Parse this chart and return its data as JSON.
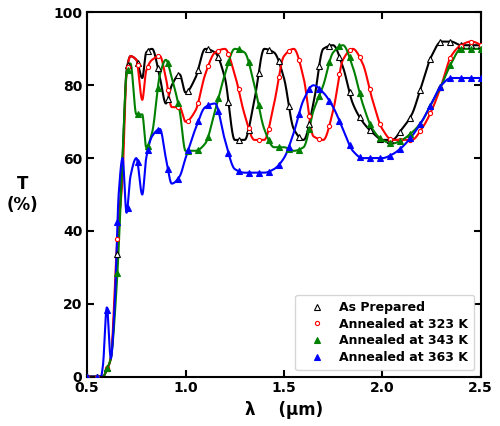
{
  "title": "",
  "xlabel": "λ    (μm)",
  "ylabel": "T\n(%)",
  "xlim": [
    0.5,
    2.5
  ],
  "ylim": [
    0,
    100
  ],
  "xticks": [
    0.5,
    1.0,
    1.5,
    2.0,
    2.5
  ],
  "yticks": [
    0,
    20,
    40,
    60,
    80,
    100
  ],
  "legend_labels": [
    "As Prepared",
    "Annealed at 323 K",
    "Annealed at 343 K",
    "Annealed at 363 K"
  ],
  "colors": [
    "black",
    "red",
    "green",
    "blue"
  ],
  "linewidth": 1.5,
  "figsize": [
    5.0,
    4.26
  ],
  "dpi": 100,
  "black_x": [
    0.5,
    0.55,
    0.58,
    0.6,
    0.62,
    0.65,
    0.68,
    0.7,
    0.72,
    0.75,
    0.78,
    0.8,
    0.83,
    0.87,
    0.9,
    0.93,
    0.97,
    1.0,
    1.05,
    1.1,
    1.15,
    1.2,
    1.25,
    1.3,
    1.35,
    1.4,
    1.45,
    1.5,
    1.55,
    1.6,
    1.65,
    1.7,
    1.75,
    1.8,
    1.85,
    1.9,
    1.95,
    2.0,
    2.05,
    2.1,
    2.15,
    2.2,
    2.25,
    2.3,
    2.35,
    2.4,
    2.45,
    2.5
  ],
  "black_y": [
    0,
    0,
    0,
    2,
    5,
    30,
    60,
    84,
    88,
    87,
    82,
    89,
    90,
    82,
    75,
    80,
    83,
    78,
    82,
    90,
    89,
    82,
    65,
    65,
    76,
    90,
    89,
    82,
    68,
    65,
    75,
    90,
    91,
    85,
    75,
    70,
    67,
    65,
    65,
    68,
    72,
    80,
    88,
    92,
    92,
    91,
    91,
    91
  ],
  "red_x": [
    0.5,
    0.55,
    0.58,
    0.6,
    0.62,
    0.65,
    0.68,
    0.7,
    0.72,
    0.75,
    0.78,
    0.8,
    0.83,
    0.87,
    0.9,
    0.93,
    0.97,
    1.0,
    1.05,
    1.1,
    1.15,
    1.2,
    1.25,
    1.3,
    1.35,
    1.4,
    1.45,
    1.5,
    1.55,
    1.6,
    1.65,
    1.7,
    1.75,
    1.8,
    1.85,
    1.9,
    1.95,
    2.0,
    2.05,
    2.1,
    2.15,
    2.2,
    2.25,
    2.3,
    2.35,
    2.4,
    2.45,
    2.5
  ],
  "red_y": [
    0,
    0,
    0,
    2,
    5,
    35,
    55,
    83,
    88,
    87,
    76,
    84,
    87,
    88,
    82,
    74,
    74,
    70,
    73,
    83,
    89,
    90,
    83,
    72,
    65,
    65,
    75,
    88,
    90,
    82,
    66,
    65,
    73,
    87,
    90,
    86,
    76,
    68,
    65,
    65,
    65,
    68,
    73,
    80,
    88,
    91,
    92,
    91
  ],
  "green_x": [
    0.5,
    0.55,
    0.58,
    0.6,
    0.62,
    0.65,
    0.68,
    0.7,
    0.72,
    0.75,
    0.78,
    0.8,
    0.83,
    0.87,
    0.9,
    0.93,
    0.97,
    1.0,
    1.05,
    1.1,
    1.15,
    1.2,
    1.25,
    1.3,
    1.35,
    1.4,
    1.45,
    1.5,
    1.55,
    1.6,
    1.65,
    1.7,
    1.75,
    1.8,
    1.85,
    1.9,
    1.95,
    2.0,
    2.05,
    2.1,
    2.15,
    2.2,
    2.25,
    2.3,
    2.35,
    2.4,
    2.45,
    2.5
  ],
  "green_y": [
    0,
    0,
    0,
    2,
    5,
    25,
    60,
    83,
    86,
    72,
    72,
    63,
    67,
    83,
    87,
    82,
    73,
    62,
    62,
    64,
    73,
    83,
    90,
    89,
    80,
    68,
    63,
    63,
    62,
    63,
    73,
    80,
    89,
    91,
    85,
    75,
    68,
    65,
    64,
    65,
    67,
    70,
    75,
    80,
    86,
    90,
    90,
    90
  ],
  "blue_x": [
    0.5,
    0.55,
    0.57,
    0.58,
    0.6,
    0.62,
    0.64,
    0.66,
    0.68,
    0.7,
    0.72,
    0.75,
    0.78,
    0.8,
    0.83,
    0.87,
    0.9,
    0.93,
    0.97,
    1.0,
    1.05,
    1.1,
    1.15,
    1.2,
    1.25,
    1.3,
    1.35,
    1.4,
    1.45,
    1.5,
    1.55,
    1.6,
    1.65,
    1.7,
    1.75,
    1.8,
    1.85,
    1.9,
    1.95,
    2.0,
    2.05,
    2.1,
    2.15,
    2.2,
    2.25,
    2.3,
    2.35,
    2.4,
    2.45,
    2.5
  ],
  "blue_y": [
    0,
    0,
    0,
    3,
    19,
    5,
    20,
    50,
    60,
    45,
    55,
    60,
    50,
    60,
    66,
    68,
    60,
    53,
    55,
    60,
    68,
    74,
    75,
    65,
    57,
    56,
    56,
    56,
    57,
    60,
    67,
    76,
    80,
    78,
    74,
    68,
    62,
    60,
    60,
    60,
    61,
    63,
    66,
    70,
    75,
    80,
    82,
    82,
    82,
    82
  ]
}
